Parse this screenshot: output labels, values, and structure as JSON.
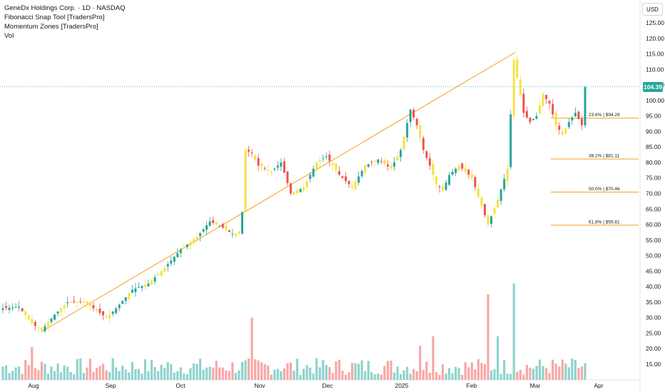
{
  "header": {
    "symbol_line": "GeneDx Holdings Corp. · 1D · NASDAQ",
    "indicators": [
      "Fibonacci Snap Tool [TradersPro]",
      "Momentum Zones [TradersPro]",
      "Vol"
    ]
  },
  "currency_button": "USD",
  "last_price": "104.39",
  "price_axis": {
    "ticks": [
      "125.00",
      "120.00",
      "115.00",
      "110.00",
      "105.00",
      "100.00",
      "95.00",
      "90.00",
      "85.00",
      "80.00",
      "75.00",
      "70.00",
      "65.00",
      "60.00",
      "55.00",
      "50.00",
      "45.00",
      "40.00",
      "35.00",
      "30.00",
      "25.00",
      "20.00",
      "15.00"
    ]
  },
  "time_axis": {
    "labels": [
      "Aug",
      "Sep",
      "Oct",
      "Nov",
      "Dec",
      "2025",
      "Feb",
      "Mar",
      "Apr"
    ]
  },
  "fib_levels": [
    {
      "label": "23.6% | $94.29",
      "price": 94.29
    },
    {
      "label": "38.2% | $81.11",
      "price": 81.11
    },
    {
      "label": "50.0% | $70.46",
      "price": 70.46
    },
    {
      "label": "61.8% | $59.81",
      "price": 59.81
    }
  ],
  "colors": {
    "up": "#26a69a",
    "down": "#ef5350",
    "neutral": "#f5e342",
    "vol_up": "#8fd3cc",
    "vol_down": "#f7a8a6",
    "fib_line": "#f59f1f",
    "trend_line": "#f59f1f",
    "last_price_line": "#26a69a"
  },
  "chart_data": {
    "type": "candlestick",
    "title": "GeneDx Holdings Corp. · 1D · NASDAQ",
    "ylim": [
      10,
      128
    ],
    "xlabels": [
      "Aug",
      "Sep",
      "Oct",
      "Nov",
      "Dec",
      "2025",
      "Feb",
      "Mar",
      "Apr"
    ],
    "trend_line": {
      "from": [
        25.5,
        "Aug"
      ],
      "to": [
        115.5,
        "Feb"
      ]
    },
    "close_points": [
      {
        "i": 0,
        "c": 33
      },
      {
        "i": 5,
        "c": 33.5
      },
      {
        "i": 9,
        "c": 28
      },
      {
        "i": 12,
        "c": 26
      },
      {
        "i": 16,
        "c": 31
      },
      {
        "i": 20,
        "c": 35
      },
      {
        "i": 25,
        "c": 35
      },
      {
        "i": 28,
        "c": 33
      },
      {
        "i": 32,
        "c": 30
      },
      {
        "i": 35,
        "c": 33
      },
      {
        "i": 40,
        "c": 39
      },
      {
        "i": 45,
        "c": 41
      },
      {
        "i": 50,
        "c": 46
      },
      {
        "i": 55,
        "c": 52
      },
      {
        "i": 60,
        "c": 56
      },
      {
        "i": 64,
        "c": 61
      },
      {
        "i": 68,
        "c": 59
      },
      {
        "i": 71,
        "c": 57
      },
      {
        "i": 73,
        "c": 57
      },
      {
        "i": 74,
        "c": 64
      },
      {
        "i": 75,
        "c": 84
      },
      {
        "i": 77,
        "c": 83
      },
      {
        "i": 79,
        "c": 79
      },
      {
        "i": 83,
        "c": 77
      },
      {
        "i": 86,
        "c": 80
      },
      {
        "i": 89,
        "c": 70
      },
      {
        "i": 93,
        "c": 72
      },
      {
        "i": 97,
        "c": 80
      },
      {
        "i": 100,
        "c": 82
      },
      {
        "i": 104,
        "c": 76
      },
      {
        "i": 108,
        "c": 72
      },
      {
        "i": 112,
        "c": 79
      },
      {
        "i": 116,
        "c": 81
      },
      {
        "i": 120,
        "c": 78
      },
      {
        "i": 123,
        "c": 84
      },
      {
        "i": 126,
        "c": 97
      },
      {
        "i": 128,
        "c": 92
      },
      {
        "i": 130,
        "c": 84
      },
      {
        "i": 132,
        "c": 79
      },
      {
        "i": 134,
        "c": 73
      },
      {
        "i": 136,
        "c": 71
      },
      {
        "i": 138,
        "c": 76
      },
      {
        "i": 141,
        "c": 79
      },
      {
        "i": 145,
        "c": 75
      },
      {
        "i": 147,
        "c": 69
      },
      {
        "i": 150,
        "c": 60
      },
      {
        "i": 153,
        "c": 68
      },
      {
        "i": 156,
        "c": 78
      },
      {
        "i": 158,
        "c": 113
      },
      {
        "i": 161,
        "c": 96
      },
      {
        "i": 163,
        "c": 93
      },
      {
        "i": 165,
        "c": 95
      },
      {
        "i": 167,
        "c": 102
      },
      {
        "i": 169,
        "c": 99
      },
      {
        "i": 171,
        "c": 92
      },
      {
        "i": 173,
        "c": 89
      },
      {
        "i": 175,
        "c": 93
      },
      {
        "i": 177,
        "c": 96
      },
      {
        "i": 179,
        "c": 92
      },
      {
        "i": 180,
        "c": 104.39
      }
    ],
    "volume_spikes": [
      {
        "i": 9,
        "v": 20.5
      },
      {
        "i": 77,
        "v": 30
      },
      {
        "i": 129,
        "v": 21
      },
      {
        "i": 133,
        "v": 24
      },
      {
        "i": 150,
        "v": 37.5
      },
      {
        "i": 158,
        "v": 41
      },
      {
        "i": 153,
        "v": 24
      }
    ]
  }
}
